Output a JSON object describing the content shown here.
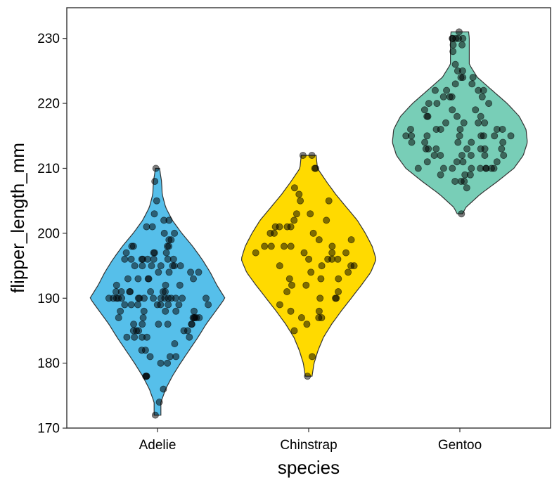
{
  "chart_data": {
    "type": "violin",
    "title": "",
    "xlabel": "species",
    "ylabel": "flipper_length_mm",
    "ylim": [
      169,
      234
    ],
    "yticks": [
      170,
      180,
      190,
      200,
      210,
      220,
      230
    ],
    "ytick_labels": [
      "170",
      "180",
      "190",
      "200",
      "210",
      "220",
      "230"
    ],
    "grid": false,
    "legend": "none",
    "point_color": "#000000",
    "point_opacity": 0.5,
    "categories": [
      "Adelie",
      "Chinstrap",
      "Gentoo"
    ],
    "series": [
      {
        "name": "Adelie",
        "color": "#56BFEA",
        "range": [
          172,
          210
        ],
        "density_profile": [
          [
            172,
            0.05
          ],
          [
            174,
            0.05
          ],
          [
            176,
            0.12
          ],
          [
            178,
            0.22
          ],
          [
            180,
            0.34
          ],
          [
            182,
            0.47
          ],
          [
            184,
            0.6
          ],
          [
            186,
            0.72
          ],
          [
            188,
            0.86
          ],
          [
            190,
            1.0
          ],
          [
            192,
            0.88
          ],
          [
            194,
            0.78
          ],
          [
            196,
            0.66
          ],
          [
            198,
            0.52
          ],
          [
            200,
            0.36
          ],
          [
            202,
            0.22
          ],
          [
            204,
            0.12
          ],
          [
            206,
            0.07
          ],
          [
            208,
            0.06
          ],
          [
            210,
            0.03
          ]
        ],
        "points": [
          172,
          174,
          176,
          178,
          178,
          178,
          180,
          180,
          181,
          181,
          181,
          182,
          182,
          183,
          184,
          184,
          184,
          184,
          184,
          185,
          185,
          185,
          185,
          185,
          186,
          186,
          186,
          186,
          186,
          186,
          187,
          187,
          187,
          187,
          187,
          187,
          187,
          188,
          188,
          188,
          188,
          188,
          189,
          189,
          189,
          189,
          189,
          189,
          189,
          189,
          190,
          190,
          190,
          190,
          190,
          190,
          190,
          190,
          190,
          190,
          190,
          190,
          190,
          190,
          190,
          190,
          191,
          191,
          191,
          191,
          191,
          191,
          191,
          192,
          192,
          192,
          193,
          193,
          193,
          193,
          193,
          194,
          194,
          194,
          194,
          195,
          195,
          195,
          195,
          195,
          195,
          195,
          196,
          196,
          196,
          196,
          196,
          196,
          196,
          196,
          197,
          197,
          197,
          197,
          198,
          198,
          198,
          198,
          199,
          199,
          200,
          200,
          201,
          201,
          202,
          202,
          203,
          205,
          208,
          210
        ]
      },
      {
        "name": "Chinstrap",
        "color": "#FFDA00",
        "range": [
          178,
          212
        ],
        "density_profile": [
          [
            178,
            0.05
          ],
          [
            180,
            0.08
          ],
          [
            182,
            0.14
          ],
          [
            184,
            0.22
          ],
          [
            186,
            0.34
          ],
          [
            188,
            0.48
          ],
          [
            190,
            0.63
          ],
          [
            192,
            0.78
          ],
          [
            194,
            0.92
          ],
          [
            196,
            1.0
          ],
          [
            198,
            0.94
          ],
          [
            200,
            0.84
          ],
          [
            202,
            0.72
          ],
          [
            204,
            0.56
          ],
          [
            206,
            0.4
          ],
          [
            208,
            0.26
          ],
          [
            210,
            0.13
          ],
          [
            212,
            0.11
          ]
        ],
        "points": [
          178,
          181,
          185,
          186,
          187,
          187,
          187,
          188,
          188,
          189,
          190,
          190,
          190,
          191,
          191,
          192,
          192,
          193,
          193,
          193,
          194,
          194,
          195,
          195,
          195,
          195,
          196,
          196,
          196,
          196,
          197,
          197,
          197,
          197,
          198,
          198,
          198,
          198,
          198,
          199,
          199,
          200,
          200,
          200,
          201,
          201,
          201,
          201,
          202,
          202,
          203,
          203,
          205,
          205,
          206,
          207,
          210,
          210,
          212,
          212
        ]
      },
      {
        "name": "Gentoo",
        "color": "#78CEB7",
        "range": [
          203,
          231
        ],
        "density_profile": [
          [
            203,
            0.04
          ],
          [
            204,
            0.09
          ],
          [
            206,
            0.3
          ],
          [
            208,
            0.56
          ],
          [
            210,
            0.8
          ],
          [
            212,
            0.94
          ],
          [
            214,
            1.0
          ],
          [
            216,
            0.98
          ],
          [
            218,
            0.88
          ],
          [
            220,
            0.7
          ],
          [
            222,
            0.48
          ],
          [
            224,
            0.26
          ],
          [
            226,
            0.14
          ],
          [
            228,
            0.14
          ],
          [
            230,
            0.14
          ],
          [
            231,
            0.13
          ]
        ],
        "points": [
          203,
          207,
          208,
          208,
          208,
          209,
          209,
          209,
          210,
          210,
          210,
          210,
          210,
          210,
          210,
          210,
          210,
          211,
          211,
          211,
          211,
          212,
          212,
          212,
          212,
          212,
          212,
          213,
          213,
          213,
          213,
          213,
          213,
          213,
          214,
          214,
          214,
          214,
          214,
          215,
          215,
          215,
          215,
          215,
          215,
          215,
          215,
          216,
          216,
          216,
          216,
          216,
          216,
          217,
          217,
          217,
          217,
          218,
          218,
          218,
          218,
          219,
          219,
          219,
          220,
          220,
          220,
          221,
          221,
          221,
          221,
          222,
          222,
          222,
          222,
          223,
          223,
          224,
          224,
          224,
          225,
          225,
          226,
          228,
          229,
          229,
          230,
          230,
          230,
          230,
          230,
          231
        ]
      }
    ]
  }
}
